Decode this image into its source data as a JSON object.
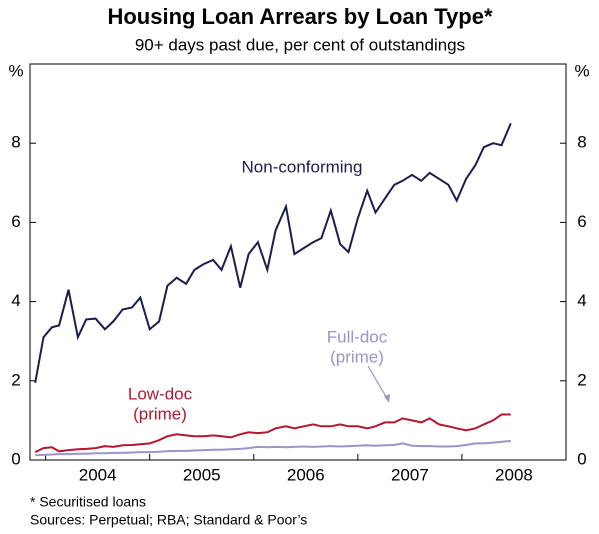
{
  "chart_data": {
    "type": "line",
    "title": "Housing Loan Arrears by Loan Type*",
    "subtitle": "90+ days past due, per cent of outstandings",
    "y_unit_left": "%",
    "y_unit_right": "%",
    "footnote": "*   Securitised loans",
    "sources": "Sources: Perpetual; RBA; Standard & Poor’s",
    "xlim": [
      2003.85,
      2009.0
    ],
    "ylim": [
      0,
      10
    ],
    "yticks": [
      0,
      2,
      4,
      6,
      8
    ],
    "xtick_marks": [
      2004,
      2005,
      2006,
      2007,
      2008
    ],
    "xticks": [
      {
        "value": 2004.5,
        "label": "2004"
      },
      {
        "value": 2005.5,
        "label": "2005"
      },
      {
        "value": 2006.5,
        "label": "2006"
      },
      {
        "value": 2007.5,
        "label": "2007"
      },
      {
        "value": 2008.5,
        "label": "2008"
      }
    ],
    "x": [
      2003.9,
      2003.98,
      2004.06,
      2004.13,
      2004.22,
      2004.31,
      2004.39,
      2004.48,
      2004.57,
      2004.65,
      2004.74,
      2004.83,
      2004.91,
      2005.0,
      2005.09,
      2005.17,
      2005.26,
      2005.35,
      2005.43,
      2005.52,
      2005.61,
      2005.69,
      2005.78,
      2005.87,
      2005.95,
      2006.04,
      2006.13,
      2006.21,
      2006.31,
      2006.39,
      2006.48,
      2006.57,
      2006.65,
      2006.74,
      2006.83,
      2006.91,
      2007.0,
      2007.09,
      2007.17,
      2007.26,
      2007.35,
      2007.43,
      2007.52,
      2007.61,
      2007.69,
      2007.78,
      2007.87,
      2007.95,
      2008.04,
      2008.13,
      2008.21,
      2008.3,
      2008.38,
      2008.47
    ],
    "series": [
      {
        "name": "Non-conforming",
        "color": "#1c1c4e",
        "values": [
          1.95,
          3.1,
          3.35,
          3.4,
          4.3,
          3.1,
          3.55,
          3.57,
          3.3,
          3.5,
          3.8,
          3.85,
          4.1,
          3.3,
          3.5,
          4.4,
          4.6,
          4.45,
          4.8,
          4.95,
          5.05,
          4.8,
          5.4,
          4.35,
          5.2,
          5.5,
          4.8,
          5.8,
          6.4,
          5.2,
          5.35,
          5.5,
          5.6,
          6.3,
          5.45,
          5.25,
          6.1,
          6.8,
          6.25,
          6.6,
          6.95,
          7.05,
          7.2,
          7.05,
          7.25,
          7.1,
          6.95,
          6.55,
          7.1,
          7.45,
          7.9,
          8.0,
          7.95,
          8.5
        ]
      },
      {
        "name": "Low-doc",
        "color": "#b3172d",
        "values": [
          0.2,
          0.3,
          0.32,
          0.22,
          0.25,
          0.27,
          0.28,
          0.3,
          0.35,
          0.33,
          0.37,
          0.38,
          0.4,
          0.42,
          0.5,
          0.6,
          0.65,
          0.62,
          0.6,
          0.6,
          0.62,
          0.6,
          0.57,
          0.65,
          0.7,
          0.68,
          0.7,
          0.8,
          0.85,
          0.8,
          0.85,
          0.9,
          0.85,
          0.85,
          0.9,
          0.85,
          0.85,
          0.8,
          0.85,
          0.95,
          0.95,
          1.05,
          1.0,
          0.95,
          1.05,
          0.9,
          0.85,
          0.8,
          0.75,
          0.8,
          0.9,
          1.0,
          1.15,
          1.15
        ]
      },
      {
        "name": "Full-doc",
        "color": "#9a94c8",
        "values": [
          0.12,
          0.13,
          0.14,
          0.15,
          0.15,
          0.16,
          0.16,
          0.17,
          0.17,
          0.18,
          0.18,
          0.19,
          0.2,
          0.2,
          0.21,
          0.22,
          0.23,
          0.23,
          0.24,
          0.25,
          0.26,
          0.26,
          0.27,
          0.28,
          0.3,
          0.33,
          0.32,
          0.33,
          0.32,
          0.33,
          0.34,
          0.33,
          0.34,
          0.35,
          0.34,
          0.35,
          0.36,
          0.37,
          0.36,
          0.37,
          0.38,
          0.42,
          0.36,
          0.35,
          0.35,
          0.34,
          0.34,
          0.35,
          0.38,
          0.42,
          0.42,
          0.44,
          0.46,
          0.48
        ]
      }
    ],
    "annotations": [
      {
        "text": "Non-conforming",
        "series": 0
      },
      {
        "text": "Low-doc",
        "series": 1
      },
      {
        "text": "(prime)",
        "series": 1
      },
      {
        "text": "Full-doc",
        "series": 2
      },
      {
        "text": "(prime)",
        "series": 2
      }
    ]
  }
}
